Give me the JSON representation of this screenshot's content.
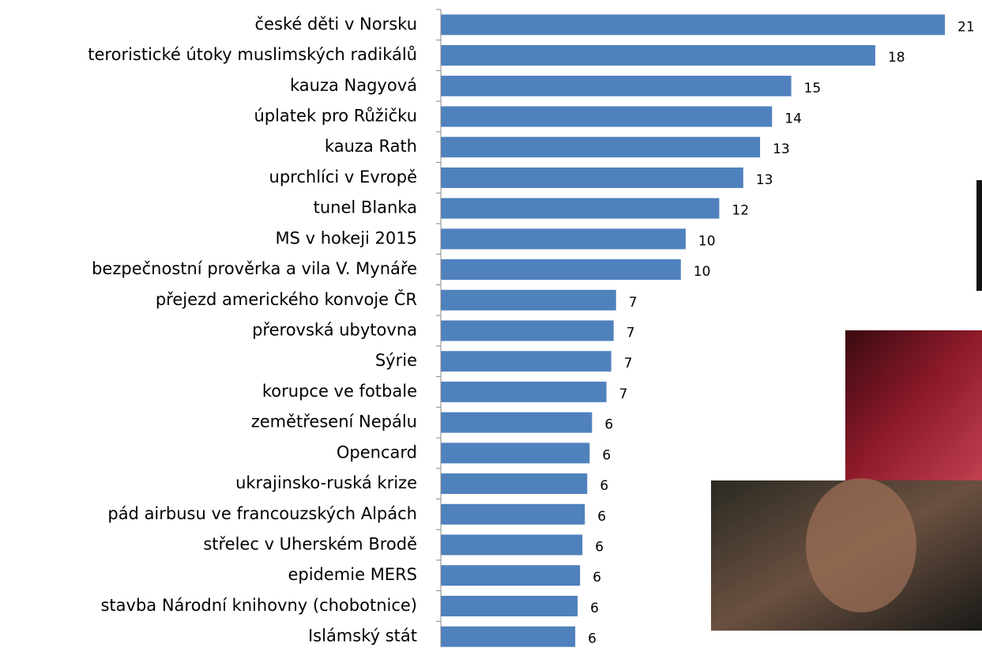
{
  "chart_data": {
    "type": "bar",
    "orientation": "horizontal",
    "categories": [
      "české děti v Norsku",
      "teroristické útoky muslimských radikálů",
      "kauza Nagyová",
      "úplatek pro Růžičku",
      "kauza Rath",
      "uprchlíci v Evropě",
      "tunel Blanka",
      "MS v hokeji 2015",
      "bezpečnostní prověrka a vila V. Mynáře",
      "přejezd amerického konvoje ČR",
      "přerovská ubytovna",
      "Sýrie",
      "korupce ve fotbale",
      "zemětřesení Nepálu",
      "Opencard",
      "ukrajinsko-ruská krize",
      "pád airbusu ve francouzských Alpách",
      "střelec v Uherském Brodě",
      "epidemie MERS",
      "stavba Národní knihovny (chobotnice)",
      "Islámský stát"
    ],
    "values": [
      21.0,
      18.1,
      14.6,
      13.8,
      13.3,
      12.6,
      11.6,
      10.2,
      10.0,
      7.3,
      7.2,
      7.1,
      6.9,
      6.3,
      6.2,
      6.1,
      6.0,
      5.9,
      5.8,
      5.7,
      5.6
    ],
    "value_labels": [
      "21",
      "18",
      "15",
      "14",
      "13",
      "13",
      "12",
      "10",
      "10",
      "7",
      "7",
      "7",
      "7",
      "6",
      "6",
      "6",
      "6",
      "6",
      "6",
      "6",
      "6"
    ],
    "color": "#4f81bd",
    "xlim": [
      0,
      21
    ]
  }
}
